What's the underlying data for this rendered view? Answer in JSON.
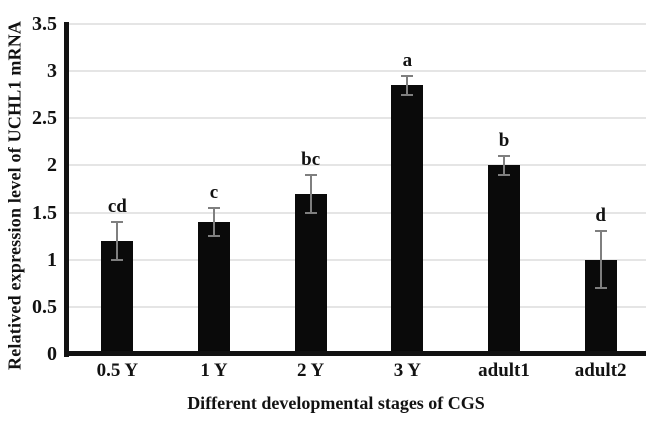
{
  "chart_data": {
    "type": "bar",
    "title": "",
    "xlabel": "Different developmental stages of CGS",
    "ylabel": "Relatived expression level of UCHL1 mRNA",
    "categories": [
      "0.5 Y",
      "1 Y",
      "2 Y",
      "3 Y",
      "adult1",
      "adult2"
    ],
    "values": [
      1.2,
      1.4,
      1.7,
      2.85,
      2.0,
      1.0
    ],
    "errors": [
      0.2,
      0.15,
      0.2,
      0.1,
      0.1,
      0.3
    ],
    "sig_letters": [
      "cd",
      "c",
      "bc",
      "a",
      "b",
      "d"
    ],
    "ylim": [
      0,
      3.5
    ],
    "ytick_labels": [
      "0",
      "0.5",
      "1",
      "1.5",
      "2",
      "2.5",
      "3",
      "3.5"
    ],
    "grid": "horizontal-only",
    "legend": "none",
    "colors": {
      "bar": "#0a0a0a",
      "error_bar": "#7f7f7f",
      "gridline": "#e5e5e5",
      "axis": "#121212",
      "text": "#121212",
      "background": "#ffffff"
    }
  }
}
